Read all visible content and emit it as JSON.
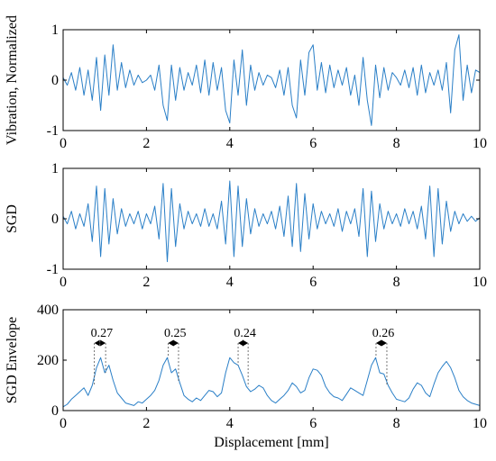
{
  "chart_data": [
    {
      "type": "line",
      "title": "",
      "xlabel": "",
      "ylabel": "Vibration, Normalized",
      "xlim": [
        0,
        10
      ],
      "ylim": [
        -1,
        1
      ],
      "xticks": [
        "0",
        "2",
        "4",
        "6",
        "8",
        "10"
      ],
      "yticks": [
        "-1",
        "0",
        "1"
      ],
      "color": "#2a7fc7",
      "series": [
        {
          "x": [
            0.0,
            0.1,
            0.2,
            0.3,
            0.4,
            0.5,
            0.6,
            0.7,
            0.8,
            0.9,
            1.0,
            1.1,
            1.2,
            1.3,
            1.4,
            1.5,
            1.6,
            1.7,
            1.8,
            1.9,
            2.0,
            2.1,
            2.2,
            2.3,
            2.4,
            2.5,
            2.6,
            2.7,
            2.8,
            2.9,
            3.0,
            3.1,
            3.2,
            3.3,
            3.4,
            3.5,
            3.6,
            3.7,
            3.8,
            3.9,
            4.0,
            4.1,
            4.2,
            4.3,
            4.4,
            4.5,
            4.6,
            4.7,
            4.8,
            4.9,
            5.0,
            5.1,
            5.2,
            5.3,
            5.4,
            5.5,
            5.6,
            5.7,
            5.8,
            5.9,
            6.0,
            6.1,
            6.2,
            6.3,
            6.4,
            6.5,
            6.6,
            6.7,
            6.8,
            6.9,
            7.0,
            7.1,
            7.2,
            7.3,
            7.4,
            7.5,
            7.6,
            7.7,
            7.8,
            7.9,
            8.0,
            8.1,
            8.2,
            8.3,
            8.4,
            8.5,
            8.6,
            8.7,
            8.8,
            8.9,
            9.0,
            9.1,
            9.2,
            9.3,
            9.4,
            9.5,
            9.6,
            9.7,
            9.8,
            9.9,
            10.0
          ],
          "values": [
            0.05,
            -0.1,
            0.15,
            -0.2,
            0.25,
            -0.3,
            0.2,
            -0.4,
            0.45,
            -0.6,
            0.5,
            -0.3,
            0.7,
            -0.2,
            0.35,
            -0.15,
            0.2,
            -0.1,
            0.1,
            -0.05,
            0.0,
            0.1,
            -0.2,
            0.3,
            -0.5,
            -0.8,
            0.3,
            -0.4,
            0.25,
            -0.2,
            0.15,
            -0.1,
            0.3,
            -0.25,
            0.4,
            -0.3,
            0.35,
            -0.2,
            0.25,
            -0.6,
            -0.85,
            0.4,
            -0.3,
            0.6,
            -0.5,
            0.3,
            -0.2,
            0.15,
            -0.1,
            0.1,
            0.05,
            -0.15,
            0.2,
            -0.3,
            0.25,
            -0.5,
            -0.75,
            0.4,
            -0.3,
            0.55,
            0.7,
            -0.2,
            0.35,
            -0.25,
            0.3,
            -0.15,
            0.2,
            -0.1,
            0.25,
            -0.3,
            0.1,
            -0.5,
            0.45,
            -0.4,
            -0.9,
            0.3,
            -0.35,
            0.25,
            -0.2,
            0.15,
            0.05,
            -0.1,
            0.2,
            -0.15,
            0.25,
            -0.3,
            0.3,
            -0.25,
            0.15,
            -0.1,
            0.2,
            -0.2,
            0.35,
            -0.65,
            0.6,
            0.9,
            -0.4,
            0.3,
            -0.25,
            0.2,
            0.15
          ]
        }
      ]
    },
    {
      "type": "line",
      "title": "",
      "xlabel": "",
      "ylabel": "SGD",
      "xlim": [
        0,
        10
      ],
      "ylim": [
        -1,
        1
      ],
      "xticks": [
        "0",
        "2",
        "4",
        "6",
        "8",
        "10"
      ],
      "yticks": [
        "-1",
        "0",
        "1"
      ],
      "color": "#2a7fc7",
      "series": [
        {
          "x": [
            0.0,
            0.1,
            0.2,
            0.3,
            0.4,
            0.5,
            0.6,
            0.7,
            0.8,
            0.9,
            1.0,
            1.1,
            1.2,
            1.3,
            1.4,
            1.5,
            1.6,
            1.7,
            1.8,
            1.9,
            2.0,
            2.1,
            2.2,
            2.3,
            2.4,
            2.5,
            2.6,
            2.7,
            2.8,
            2.9,
            3.0,
            3.1,
            3.2,
            3.3,
            3.4,
            3.5,
            3.6,
            3.7,
            3.8,
            3.9,
            4.0,
            4.1,
            4.2,
            4.3,
            4.4,
            4.5,
            4.6,
            4.7,
            4.8,
            4.9,
            5.0,
            5.1,
            5.2,
            5.3,
            5.4,
            5.5,
            5.6,
            5.7,
            5.8,
            5.9,
            6.0,
            6.1,
            6.2,
            6.3,
            6.4,
            6.5,
            6.6,
            6.7,
            6.8,
            6.9,
            7.0,
            7.1,
            7.2,
            7.3,
            7.4,
            7.5,
            7.6,
            7.7,
            7.8,
            7.9,
            8.0,
            8.1,
            8.2,
            8.3,
            8.4,
            8.5,
            8.6,
            8.7,
            8.8,
            8.9,
            9.0,
            9.1,
            9.2,
            9.3,
            9.4,
            9.5,
            9.6,
            9.7,
            9.8,
            9.9,
            10.0
          ],
          "values": [
            0.05,
            -0.1,
            0.15,
            -0.2,
            0.1,
            -0.15,
            0.3,
            -0.45,
            0.65,
            -0.75,
            0.6,
            -0.5,
            0.4,
            -0.3,
            0.2,
            -0.15,
            0.1,
            -0.1,
            0.15,
            -0.2,
            0.1,
            -0.1,
            0.25,
            -0.4,
            0.7,
            -0.85,
            0.6,
            -0.55,
            0.3,
            -0.2,
            0.15,
            -0.1,
            0.1,
            -0.15,
            0.2,
            -0.15,
            0.1,
            -0.2,
            0.35,
            -0.5,
            0.75,
            -0.75,
            0.65,
            -0.55,
            0.4,
            -0.3,
            0.2,
            -0.15,
            0.1,
            -0.1,
            0.15,
            -0.2,
            0.25,
            -0.35,
            0.45,
            -0.55,
            0.7,
            -0.65,
            0.5,
            -0.4,
            0.3,
            -0.2,
            0.15,
            -0.1,
            0.1,
            -0.15,
            0.2,
            -0.25,
            0.15,
            -0.1,
            0.2,
            -0.35,
            0.6,
            -0.75,
            0.55,
            -0.45,
            0.3,
            -0.2,
            0.15,
            -0.1,
            0.1,
            -0.15,
            0.2,
            -0.1,
            0.15,
            -0.2,
            0.25,
            -0.4,
            0.65,
            -0.75,
            0.6,
            -0.5,
            0.35,
            -0.25,
            0.15,
            -0.1,
            0.1,
            -0.05,
            0.05,
            -0.05,
            0.02
          ]
        }
      ]
    },
    {
      "type": "line",
      "title": "",
      "xlabel": "Displacement [mm]",
      "ylabel": "SGD Envelope",
      "xlim": [
        0,
        10
      ],
      "ylim": [
        0,
        400
      ],
      "xticks": [
        "0",
        "2",
        "4",
        "6",
        "8",
        "10"
      ],
      "yticks": [
        "0",
        "200",
        "400"
      ],
      "color": "#2a7fc7",
      "series": [
        {
          "x": [
            0.0,
            0.1,
            0.2,
            0.3,
            0.4,
            0.5,
            0.6,
            0.7,
            0.8,
            0.9,
            1.0,
            1.1,
            1.2,
            1.3,
            1.4,
            1.5,
            1.6,
            1.7,
            1.8,
            1.9,
            2.0,
            2.1,
            2.2,
            2.3,
            2.4,
            2.5,
            2.6,
            2.7,
            2.8,
            2.9,
            3.0,
            3.1,
            3.2,
            3.3,
            3.4,
            3.5,
            3.6,
            3.7,
            3.8,
            3.9,
            4.0,
            4.1,
            4.2,
            4.3,
            4.4,
            4.5,
            4.6,
            4.7,
            4.8,
            4.9,
            5.0,
            5.1,
            5.2,
            5.3,
            5.4,
            5.5,
            5.6,
            5.7,
            5.8,
            5.9,
            6.0,
            6.1,
            6.2,
            6.3,
            6.4,
            6.5,
            6.6,
            6.7,
            6.8,
            6.9,
            7.0,
            7.1,
            7.2,
            7.3,
            7.4,
            7.5,
            7.6,
            7.7,
            7.8,
            7.9,
            8.0,
            8.1,
            8.2,
            8.3,
            8.4,
            8.5,
            8.6,
            8.7,
            8.8,
            8.9,
            9.0,
            9.1,
            9.2,
            9.3,
            9.4,
            9.5,
            9.6,
            9.7,
            9.8,
            9.9,
            10.0
          ],
          "values": [
            15,
            25,
            45,
            60,
            75,
            90,
            60,
            100,
            170,
            210,
            150,
            180,
            120,
            70,
            50,
            30,
            25,
            20,
            35,
            30,
            45,
            60,
            80,
            120,
            180,
            210,
            150,
            165,
            110,
            60,
            45,
            35,
            50,
            40,
            60,
            80,
            75,
            55,
            70,
            150,
            210,
            190,
            180,
            140,
            95,
            75,
            85,
            100,
            90,
            60,
            40,
            30,
            45,
            60,
            80,
            110,
            95,
            70,
            80,
            130,
            165,
            160,
            140,
            95,
            70,
            55,
            50,
            40,
            65,
            90,
            80,
            70,
            60,
            120,
            180,
            210,
            150,
            145,
            100,
            70,
            45,
            40,
            35,
            50,
            85,
            110,
            100,
            70,
            55,
            105,
            150,
            175,
            195,
            170,
            130,
            80,
            55,
            40,
            30,
            25,
            20
          ]
        }
      ],
      "annotations": [
        {
          "label": "0.27",
          "x1": 0.75,
          "x2": 1.02
        },
        {
          "label": "0.25",
          "x1": 2.52,
          "x2": 2.77
        },
        {
          "label": "0.24",
          "x1": 4.2,
          "x2": 4.44
        },
        {
          "label": "0.26",
          "x1": 7.51,
          "x2": 7.77
        }
      ]
    }
  ]
}
